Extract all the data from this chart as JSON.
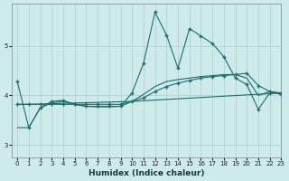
{
  "title": "",
  "xlabel": "Humidex (Indice chaleur)",
  "bg_color": "#ceeaea",
  "line_color": "#1a6e6e",
  "grid_color": "#a8d0d0",
  "xlim": [
    -0.5,
    23
  ],
  "ylim": [
    2.75,
    5.85
  ],
  "xticks": [
    0,
    1,
    2,
    3,
    4,
    5,
    6,
    7,
    8,
    9,
    10,
    11,
    12,
    13,
    14,
    15,
    16,
    17,
    18,
    19,
    20,
    21,
    22,
    23
  ],
  "yticks": [
    3,
    4,
    5
  ],
  "line1_x": [
    0,
    1,
    2,
    3,
    4,
    5,
    6,
    7,
    8,
    9,
    10,
    11,
    12,
    13,
    14,
    15,
    16,
    17,
    18,
    19,
    20,
    21,
    22,
    23
  ],
  "line1_y": [
    4.28,
    3.35,
    3.75,
    3.88,
    3.9,
    3.82,
    3.78,
    3.78,
    3.78,
    3.78,
    4.05,
    4.65,
    5.68,
    5.22,
    4.55,
    5.35,
    5.2,
    5.05,
    4.78,
    4.35,
    4.22,
    3.72,
    4.05,
    4.05
  ],
  "line2_x": [
    0,
    1,
    2,
    3,
    4,
    5,
    6,
    7,
    8,
    9,
    10,
    11,
    12,
    13,
    14,
    15,
    16,
    17,
    18,
    19,
    20,
    21,
    22,
    23
  ],
  "line2_y": [
    3.82,
    3.82,
    3.82,
    3.82,
    3.82,
    3.82,
    3.82,
    3.82,
    3.82,
    3.82,
    3.88,
    3.95,
    4.08,
    4.18,
    4.25,
    4.3,
    4.35,
    4.38,
    4.4,
    4.42,
    4.45,
    4.2,
    4.08,
    4.02
  ],
  "line3_x": [
    0,
    1,
    10,
    11,
    12,
    13,
    14,
    15,
    16,
    17,
    18,
    19,
    20,
    21,
    22,
    23
  ],
  "line3_y": [
    3.82,
    3.82,
    3.88,
    4.02,
    4.18,
    4.28,
    4.32,
    4.35,
    4.38,
    4.4,
    4.42,
    4.42,
    4.35,
    4.0,
    4.08,
    4.05
  ],
  "line4_x": [
    0,
    1,
    2,
    3,
    4,
    5,
    6,
    7,
    8,
    9,
    10,
    23
  ],
  "line4_y": [
    3.35,
    3.35,
    3.75,
    3.85,
    3.88,
    3.82,
    3.78,
    3.77,
    3.77,
    3.78,
    3.88,
    4.05
  ]
}
